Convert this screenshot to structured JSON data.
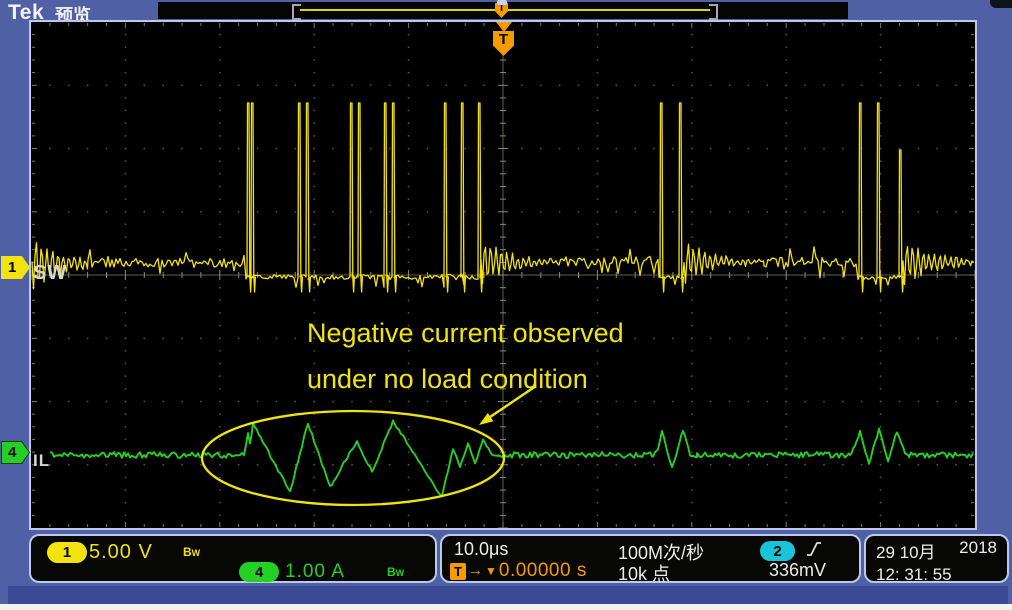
{
  "header": {
    "brand": "Tek",
    "mode": "预览"
  },
  "colors": {
    "ch1": "#f2e20e",
    "ch2": "#1ac4d8",
    "ch4": "#25d025",
    "trigger": "#f59b00",
    "annotation": "#f0e40c",
    "label": "#d8d8d2"
  },
  "channels": {
    "ch1": {
      "number": "1",
      "label": "SW",
      "scale": "5.00 V",
      "bw_b": "B",
      "bw_w": "W"
    },
    "ch4": {
      "number": "4",
      "label": "IL",
      "scale": "1.00 A",
      "bw_b": "B",
      "bw_w": "W"
    }
  },
  "annotation": {
    "line1": "Negative current observed",
    "line2": "under no load condition"
  },
  "horizontal": {
    "scale": "10.0μs",
    "sample_rate": "100M次/秒",
    "record_length": "10k 点"
  },
  "trigger": {
    "symbol": "T",
    "arrow": "→",
    "marker": "▼",
    "position": "0.00000 s",
    "source": "2",
    "level": "336mV"
  },
  "clock": {
    "date_day_month": "29 10月",
    "date_year": "2018",
    "time": "12: 31: 55"
  }
}
